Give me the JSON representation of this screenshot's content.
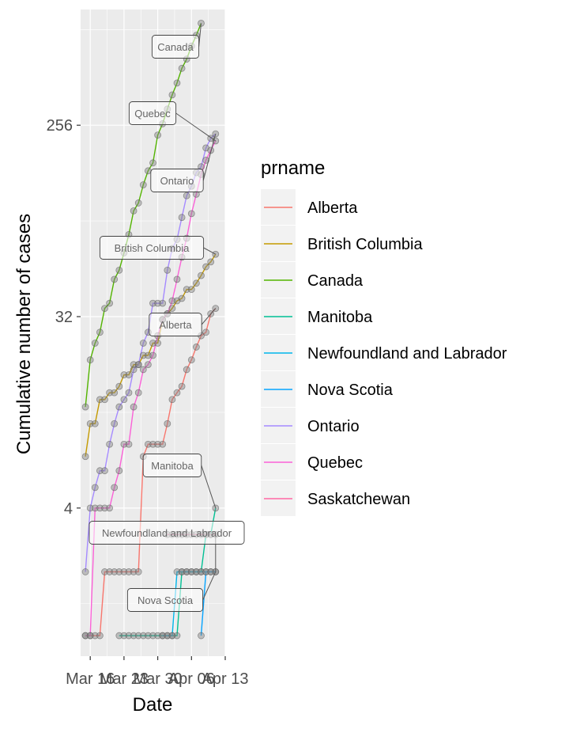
{
  "chart_data": {
    "type": "line",
    "xlabel": "Date",
    "ylabel": "Cumulative number of cases",
    "y_scale": "log2",
    "ylim": [
      0.8,
      900
    ],
    "xlim": [
      "2020-03-14",
      "2020-04-13"
    ],
    "x_ticks": [
      "2020-03-16",
      "2020-03-23",
      "2020-03-30",
      "2020-04-06",
      "2020-04-13"
    ],
    "x_tick_labels": [
      "Mar 16",
      "Mar 23",
      "Mar 30",
      "Apr 06",
      "Apr 13"
    ],
    "y_ticks": [
      4,
      32,
      256
    ],
    "y_tick_labels": [
      "4",
      "32",
      "256"
    ],
    "grid": true,
    "legend_title": "prname",
    "legend_position": "right",
    "series": [
      {
        "name": "Alberta",
        "color": "#F8766D",
        "label": "Alberta",
        "points": [
          [
            "2020-03-15",
            1
          ],
          [
            "2020-03-16",
            1
          ],
          [
            "2020-03-17",
            1
          ],
          [
            "2020-03-18",
            1
          ],
          [
            "2020-03-19",
            2
          ],
          [
            "2020-03-20",
            2
          ],
          [
            "2020-03-21",
            2
          ],
          [
            "2020-03-22",
            2
          ],
          [
            "2020-03-23",
            2
          ],
          [
            "2020-03-24",
            2
          ],
          [
            "2020-03-25",
            2
          ],
          [
            "2020-03-26",
            2
          ],
          [
            "2020-03-27",
            7
          ],
          [
            "2020-03-28",
            8
          ],
          [
            "2020-03-29",
            8
          ],
          [
            "2020-03-30",
            8
          ],
          [
            "2020-03-31",
            8
          ],
          [
            "2020-04-01",
            10
          ],
          [
            "2020-04-02",
            13
          ],
          [
            "2020-04-03",
            14
          ],
          [
            "2020-04-04",
            15
          ],
          [
            "2020-04-05",
            18
          ],
          [
            "2020-04-06",
            20
          ],
          [
            "2020-04-07",
            23
          ],
          [
            "2020-04-08",
            26
          ],
          [
            "2020-04-09",
            27
          ],
          [
            "2020-04-10",
            33
          ],
          [
            "2020-04-11",
            35
          ]
        ]
      },
      {
        "name": "British Columbia",
        "color": "#C49A00",
        "label": "British Columbia",
        "points": [
          [
            "2020-03-15",
            7
          ],
          [
            "2020-03-16",
            10
          ],
          [
            "2020-03-17",
            10
          ],
          [
            "2020-03-18",
            13
          ],
          [
            "2020-03-19",
            13
          ],
          [
            "2020-03-20",
            14
          ],
          [
            "2020-03-21",
            14
          ],
          [
            "2020-03-22",
            15
          ],
          [
            "2020-03-23",
            17
          ],
          [
            "2020-03-24",
            17
          ],
          [
            "2020-03-25",
            19
          ],
          [
            "2020-03-26",
            19
          ],
          [
            "2020-03-27",
            21
          ],
          [
            "2020-03-28",
            21
          ],
          [
            "2020-03-29",
            24
          ],
          [
            "2020-03-30",
            24
          ],
          [
            "2020-03-31",
            31
          ],
          [
            "2020-04-01",
            33
          ],
          [
            "2020-04-02",
            35
          ],
          [
            "2020-04-03",
            38
          ],
          [
            "2020-04-04",
            39
          ],
          [
            "2020-04-05",
            43
          ],
          [
            "2020-04-06",
            43
          ],
          [
            "2020-04-07",
            46
          ],
          [
            "2020-04-08",
            50
          ],
          [
            "2020-04-09",
            55
          ],
          [
            "2020-04-10",
            58
          ],
          [
            "2020-04-11",
            63
          ]
        ]
      },
      {
        "name": "Canada",
        "color": "#53B400",
        "label": "Canada",
        "points": [
          [
            "2020-03-15",
            12
          ],
          [
            "2020-03-16",
            20
          ],
          [
            "2020-03-17",
            24
          ],
          [
            "2020-03-18",
            27
          ],
          [
            "2020-03-19",
            35
          ],
          [
            "2020-03-20",
            37
          ],
          [
            "2020-03-21",
            48
          ],
          [
            "2020-03-22",
            53
          ],
          [
            "2020-03-23",
            64
          ],
          [
            "2020-03-24",
            78
          ],
          [
            "2020-03-25",
            101
          ],
          [
            "2020-03-26",
            110
          ],
          [
            "2020-03-27",
            134
          ],
          [
            "2020-03-28",
            156
          ],
          [
            "2020-03-29",
            170
          ],
          [
            "2020-03-30",
            230
          ],
          [
            "2020-03-31",
            260
          ],
          [
            "2020-04-01",
            305
          ],
          [
            "2020-04-02",
            356
          ],
          [
            "2020-04-03",
            405
          ],
          [
            "2020-04-04",
            475
          ],
          [
            "2020-04-05",
            525
          ],
          [
            "2020-04-06",
            605
          ],
          [
            "2020-04-07",
            680
          ],
          [
            "2020-04-08",
            775
          ]
        ]
      },
      {
        "name": "Manitoba",
        "color": "#00C094",
        "label": "Manitoba",
        "points": [
          [
            "2020-03-22",
            1
          ],
          [
            "2020-03-23",
            1
          ],
          [
            "2020-03-24",
            1
          ],
          [
            "2020-03-25",
            1
          ],
          [
            "2020-03-26",
            1
          ],
          [
            "2020-03-27",
            1
          ],
          [
            "2020-03-28",
            1
          ],
          [
            "2020-03-29",
            1
          ],
          [
            "2020-03-30",
            1
          ],
          [
            "2020-03-31",
            1
          ],
          [
            "2020-04-01",
            1
          ],
          [
            "2020-04-02",
            1
          ],
          [
            "2020-04-03",
            1
          ],
          [
            "2020-04-04",
            2
          ],
          [
            "2020-04-05",
            2
          ],
          [
            "2020-04-06",
            2
          ],
          [
            "2020-04-07",
            2
          ],
          [
            "2020-04-08",
            2
          ],
          [
            "2020-04-09",
            3
          ],
          [
            "2020-04-10",
            3
          ],
          [
            "2020-04-11",
            4
          ]
        ]
      },
      {
        "name": "Newfoundland and Labrador",
        "color": "#00B6EB",
        "label": "Newfoundland and Labrador",
        "points": [
          [
            "2020-03-31",
            1
          ],
          [
            "2020-04-01",
            1
          ],
          [
            "2020-04-02",
            1
          ],
          [
            "2020-04-03",
            2
          ],
          [
            "2020-04-04",
            2
          ],
          [
            "2020-04-05",
            2
          ],
          [
            "2020-04-06",
            2
          ],
          [
            "2020-04-07",
            2
          ],
          [
            "2020-04-08",
            2
          ],
          [
            "2020-04-09",
            2
          ],
          [
            "2020-04-10",
            2
          ],
          [
            "2020-04-11",
            2
          ]
        ]
      },
      {
        "name": "Nova Scotia",
        "color": "#06A4FF",
        "label": "Nova Scotia",
        "points": [
          [
            "2020-04-08",
            1
          ],
          [
            "2020-04-09",
            2
          ],
          [
            "2020-04-10",
            2
          ],
          [
            "2020-04-11",
            2
          ]
        ]
      },
      {
        "name": "Ontario",
        "color": "#A58AFF",
        "label": "Ontario",
        "points": [
          [
            "2020-03-15",
            2
          ],
          [
            "2020-03-16",
            4
          ],
          [
            "2020-03-17",
            5
          ],
          [
            "2020-03-18",
            6
          ],
          [
            "2020-03-19",
            6
          ],
          [
            "2020-03-20",
            8
          ],
          [
            "2020-03-21",
            10
          ],
          [
            "2020-03-22",
            12
          ],
          [
            "2020-03-23",
            13
          ],
          [
            "2020-03-24",
            14
          ],
          [
            "2020-03-25",
            18
          ],
          [
            "2020-03-26",
            19
          ],
          [
            "2020-03-27",
            24
          ],
          [
            "2020-03-28",
            27
          ],
          [
            "2020-03-29",
            37
          ],
          [
            "2020-03-30",
            37
          ],
          [
            "2020-03-31",
            37
          ],
          [
            "2020-04-01",
            53
          ],
          [
            "2020-04-02",
            67
          ],
          [
            "2020-04-03",
            74
          ],
          [
            "2020-04-04",
            94
          ],
          [
            "2020-04-05",
            119
          ],
          [
            "2020-04-06",
            132
          ],
          [
            "2020-04-07",
            153
          ],
          [
            "2020-04-08",
            163
          ],
          [
            "2020-04-09",
            200
          ],
          [
            "2020-04-10",
            222
          ],
          [
            "2020-04-11",
            233
          ]
        ]
      },
      {
        "name": "Quebec",
        "color": "#FB61D7",
        "label": "Quebec",
        "points": [
          [
            "2020-03-15",
            1
          ],
          [
            "2020-03-16",
            1
          ],
          [
            "2020-03-17",
            4
          ],
          [
            "2020-03-18",
            4
          ],
          [
            "2020-03-19",
            4
          ],
          [
            "2020-03-20",
            4
          ],
          [
            "2020-03-21",
            5
          ],
          [
            "2020-03-22",
            6
          ],
          [
            "2020-03-23",
            8
          ],
          [
            "2020-03-24",
            8
          ],
          [
            "2020-03-25",
            12
          ],
          [
            "2020-03-26",
            14
          ],
          [
            "2020-03-27",
            18
          ],
          [
            "2020-03-28",
            19
          ],
          [
            "2020-03-29",
            21
          ],
          [
            "2020-03-30",
            26
          ],
          [
            "2020-03-31",
            31
          ],
          [
            "2020-04-01",
            33
          ],
          [
            "2020-04-02",
            38
          ],
          [
            "2020-04-03",
            48
          ],
          [
            "2020-04-04",
            61
          ],
          [
            "2020-04-05",
            75
          ],
          [
            "2020-04-06",
            98
          ],
          [
            "2020-04-07",
            121
          ],
          [
            "2020-04-08",
            150
          ],
          [
            "2020-04-09",
            175
          ],
          [
            "2020-04-10",
            195
          ],
          [
            "2020-04-11",
            216
          ]
        ]
      },
      {
        "name": "Saskatchewan",
        "color": "#FF67A4",
        "label": "",
        "points": [
          [
            "2020-04-01",
            3
          ],
          [
            "2020-04-02",
            3
          ],
          [
            "2020-04-03",
            3
          ],
          [
            "2020-04-04",
            3
          ],
          [
            "2020-04-05",
            3
          ],
          [
            "2020-04-06",
            3
          ],
          [
            "2020-04-07",
            3
          ],
          [
            "2020-04-08",
            3
          ],
          [
            "2020-04-09",
            3
          ],
          [
            "2020-04-10",
            3
          ],
          [
            "2020-04-11",
            3
          ]
        ]
      }
    ]
  }
}
